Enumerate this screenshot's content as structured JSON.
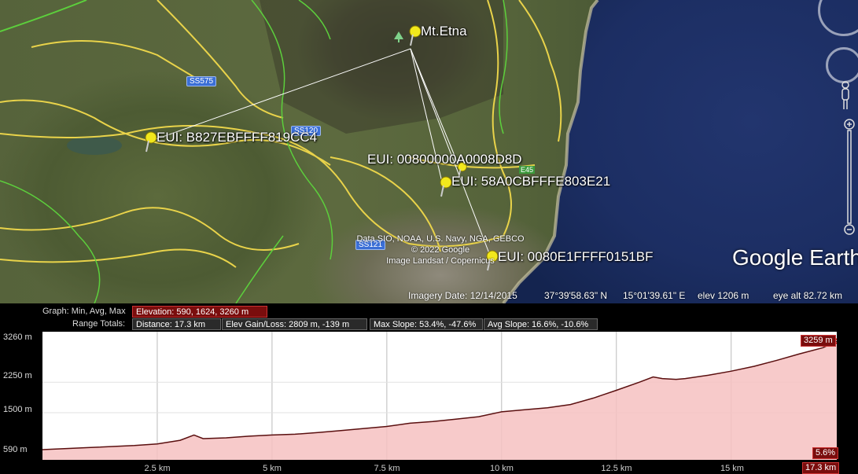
{
  "map": {
    "placemarks": [
      {
        "id": "etna",
        "label": "Mt.Etna"
      },
      {
        "id": "eui1",
        "label": "EUI: B827EBFFFF819CC4"
      },
      {
        "id": "eui2",
        "label": "EUI: 00800000A0008D8D"
      },
      {
        "id": "eui3",
        "label": "EUI: 58A0CBFFFE803E21"
      },
      {
        "id": "eui4",
        "label": "EUI: 0080E1FFFF0151BF"
      }
    ],
    "road_labels": {
      "ss575": "SS575",
      "ss121": "SS121",
      "e45": "E45",
      "ss_mid": "SS120"
    },
    "attribution": [
      "Data SIO, NOAA, U.S. Navy, NGA, GEBCO",
      "© 2022 Google",
      "Image Landsat / Copernicus"
    ],
    "logo": "Google Earth",
    "status": {
      "imagery_date": "Imagery Date: 12/14/2015",
      "lat": "37°39'58.63\" N",
      "lon": "15°01'39.61\" E",
      "elev": "elev  1206 m",
      "eye_alt": "eye alt  82.72 km"
    }
  },
  "profile": {
    "graph_label": "Graph:",
    "graph_modes": "Min, Avg, Max",
    "elevation_box": "Elevation: 590, 1624, 3260 m",
    "range_totals_label": "Range Totals:",
    "distance_box": "Distance: 17.3 km",
    "gain_loss_box": "Elev Gain/Loss: 2809 m, -139 m",
    "max_slope_box": "Max Slope: 53.4%, -47.6%",
    "avg_slope_box": "Avg Slope: 16.6%, -10.6%",
    "y_labels": [
      "3260 m",
      "2250 m",
      "1500 m",
      "590 m"
    ],
    "x_labels": [
      "2.5 km",
      "5 km",
      "7.5 km",
      "10 km",
      "12.5 km",
      "15 km"
    ],
    "end_value_tag": "3259 m",
    "slope_tag": "5.6%",
    "end_distance_tag": "17.3 km"
  },
  "chart_data": {
    "type": "area",
    "title": "",
    "xlabel": "",
    "ylabel": "",
    "x_unit": "km",
    "y_unit": "m",
    "xlim": [
      0,
      17.3
    ],
    "ylim": [
      590,
      3260
    ],
    "series": [
      {
        "x": [
          0,
          1.0,
          2.0,
          2.5,
          3.0,
          3.3,
          3.5,
          4.0,
          4.5,
          5.0,
          5.5,
          6.0,
          6.5,
          7.0,
          7.5,
          8.0,
          8.5,
          9.0,
          9.5,
          10.0,
          10.5,
          11.0,
          11.5,
          12.0,
          12.5,
          13.0,
          13.3,
          13.5,
          13.8,
          14.0,
          14.5,
          15.0,
          15.5,
          16.0,
          16.5,
          17.0,
          17.3
        ],
        "y": [
          590,
          640,
          690,
          730,
          820,
          950,
          860,
          880,
          920,
          950,
          970,
          1010,
          1060,
          1110,
          1160,
          1240,
          1280,
          1340,
          1400,
          1520,
          1570,
          1620,
          1700,
          1860,
          2050,
          2250,
          2380,
          2340,
          2320,
          2340,
          2420,
          2520,
          2640,
          2790,
          2950,
          3100,
          3259
        ]
      }
    ]
  }
}
